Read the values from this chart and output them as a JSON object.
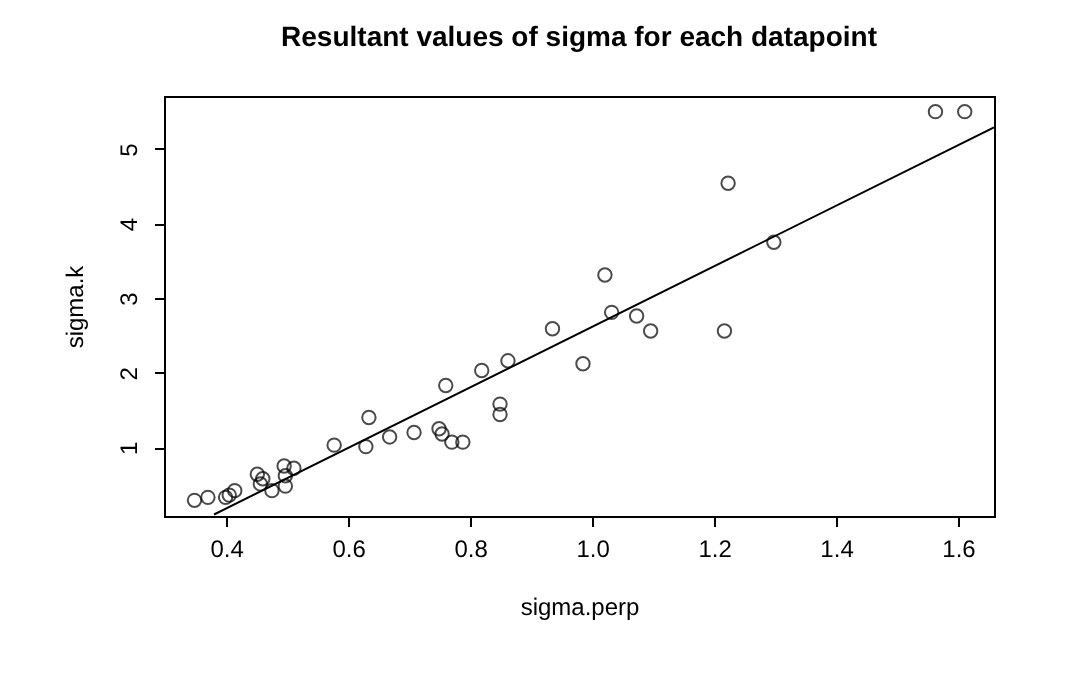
{
  "chart_data": {
    "type": "scatter",
    "title": "Resultant values of sigma for each datapoint",
    "xlabel": "sigma.perp",
    "ylabel": "sigma.k",
    "xlim": [
      0.298,
      1.659
    ],
    "ylim": [
      0.08,
      5.71
    ],
    "xticks": [
      {
        "value": 0.4,
        "label": "0.4"
      },
      {
        "value": 0.6,
        "label": "0.6"
      },
      {
        "value": 0.8,
        "label": "0.8"
      },
      {
        "value": 1.0,
        "label": "1.0"
      },
      {
        "value": 1.2,
        "label": "1.2"
      },
      {
        "value": 1.4,
        "label": "1.4"
      },
      {
        "value": 1.6,
        "label": "1.6"
      }
    ],
    "yticks": [
      1,
      2,
      3,
      4,
      5
    ],
    "grid": false,
    "series": [
      {
        "color": "#000000",
        "marker": "circle",
        "x": [
          0.348,
          0.37,
          0.399,
          0.405,
          0.414,
          0.451,
          0.46,
          0.456,
          0.475,
          0.495,
          0.497,
          0.497,
          0.511,
          0.577,
          0.629,
          0.634,
          0.668,
          0.708,
          0.749,
          0.754,
          0.76,
          0.77,
          0.788,
          0.819,
          0.849,
          0.849,
          0.862,
          0.935,
          0.985,
          1.021,
          1.032,
          1.073,
          1.096,
          1.217,
          1.223,
          1.298,
          1.563,
          1.611
        ],
        "values": [
          0.29,
          0.33,
          0.33,
          0.36,
          0.42,
          0.64,
          0.58,
          0.51,
          0.42,
          0.75,
          0.62,
          0.48,
          0.72,
          1.03,
          1.01,
          1.4,
          1.14,
          1.2,
          1.25,
          1.18,
          1.83,
          1.07,
          1.07,
          2.03,
          1.58,
          1.44,
          2.16,
          2.59,
          2.12,
          3.31,
          2.81,
          2.76,
          2.56,
          2.56,
          4.54,
          3.75,
          5.5,
          5.5
        ]
      },
      {
        "type": "line",
        "color": "#000000",
        "line_style": "solid",
        "marker": "none",
        "x": [
          0.38,
          1.659
        ],
        "values": [
          0.1,
          5.29
        ]
      }
    ]
  }
}
